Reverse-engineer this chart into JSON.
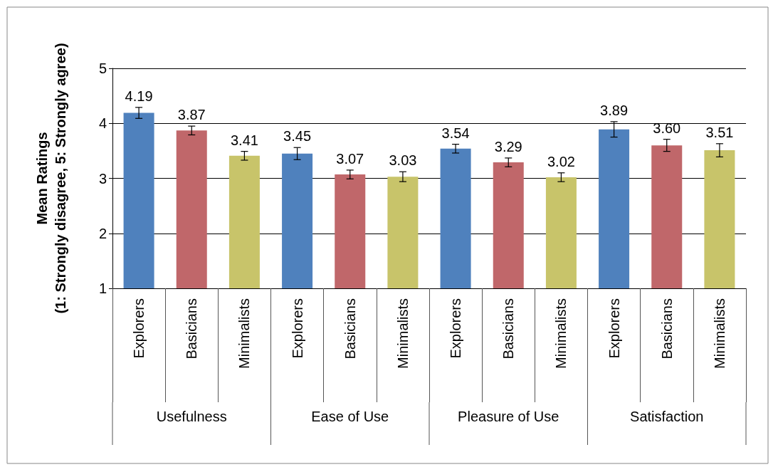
{
  "chart_data": {
    "type": "bar",
    "ylabel": "Mean Ratings\n(1: Strongly disagree, 5: Strongly agree)",
    "categories": [
      "Explorers",
      "Basicians",
      "Minimalists",
      "Explorers",
      "Basicians",
      "Minimalists",
      "Explorers",
      "Basicians",
      "Minimalists",
      "Explorers",
      "Basicians",
      "Minimalists"
    ],
    "values": [
      4.19,
      3.87,
      3.41,
      3.45,
      3.07,
      3.03,
      3.54,
      3.29,
      3.02,
      3.89,
      3.6,
      3.51
    ],
    "value_labels": [
      "4.19",
      "3.87",
      "3.41",
      "3.45",
      "3.07",
      "3.03",
      "3.54",
      "3.29",
      "3.02",
      "3.89",
      "3.60",
      "3.51"
    ],
    "errors": [
      0.1,
      0.08,
      0.08,
      0.11,
      0.08,
      0.09,
      0.08,
      0.08,
      0.08,
      0.14,
      0.11,
      0.12
    ],
    "colors": [
      "#4f81bd",
      "#c0676a",
      "#c8c46a",
      "#4f81bd",
      "#c0676a",
      "#c8c46a",
      "#4f81bd",
      "#c0676a",
      "#c8c46a",
      "#4f81bd",
      "#c0676a",
      "#c8c46a"
    ],
    "annotations": [
      "Usefulness",
      "Ease of Use",
      "Pleasure of Use",
      "Satisfaction"
    ],
    "ylim": [
      1,
      5
    ],
    "yticks": [
      1,
      2,
      3,
      4,
      5
    ],
    "grid": "y"
  }
}
